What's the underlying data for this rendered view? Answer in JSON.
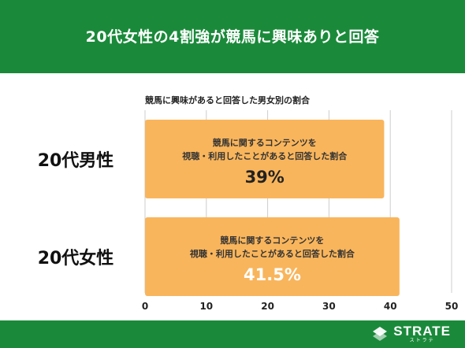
{
  "header": {
    "title": "20代女性の4割強が競馬に興味ありと回答"
  },
  "footer": {
    "brand": "STRATE",
    "brand_sub": "ストラテ"
  },
  "colors": {
    "header_bg": "#1a8a3a",
    "bar": "#f9b55c",
    "grid": "#cccccc"
  },
  "chart_data": {
    "type": "bar",
    "orientation": "horizontal",
    "title": "競馬に興味があると回答した男女別の割合",
    "categories": [
      "20代男性",
      "20代女性"
    ],
    "values": [
      39,
      41.5
    ],
    "bar_labels": [
      {
        "line1": "競馬に関するコンテンツを",
        "line2": "視聴・利用したことがあると回答した割合",
        "value": "39%"
      },
      {
        "line1": "競馬に関するコンテンツを",
        "line2": "視聴・利用したことがあると回答した割合",
        "value": "41.5%"
      }
    ],
    "xlim": [
      0,
      50
    ],
    "xticks": [
      "0",
      "10",
      "20",
      "30",
      "40",
      "50"
    ],
    "grid": true
  }
}
